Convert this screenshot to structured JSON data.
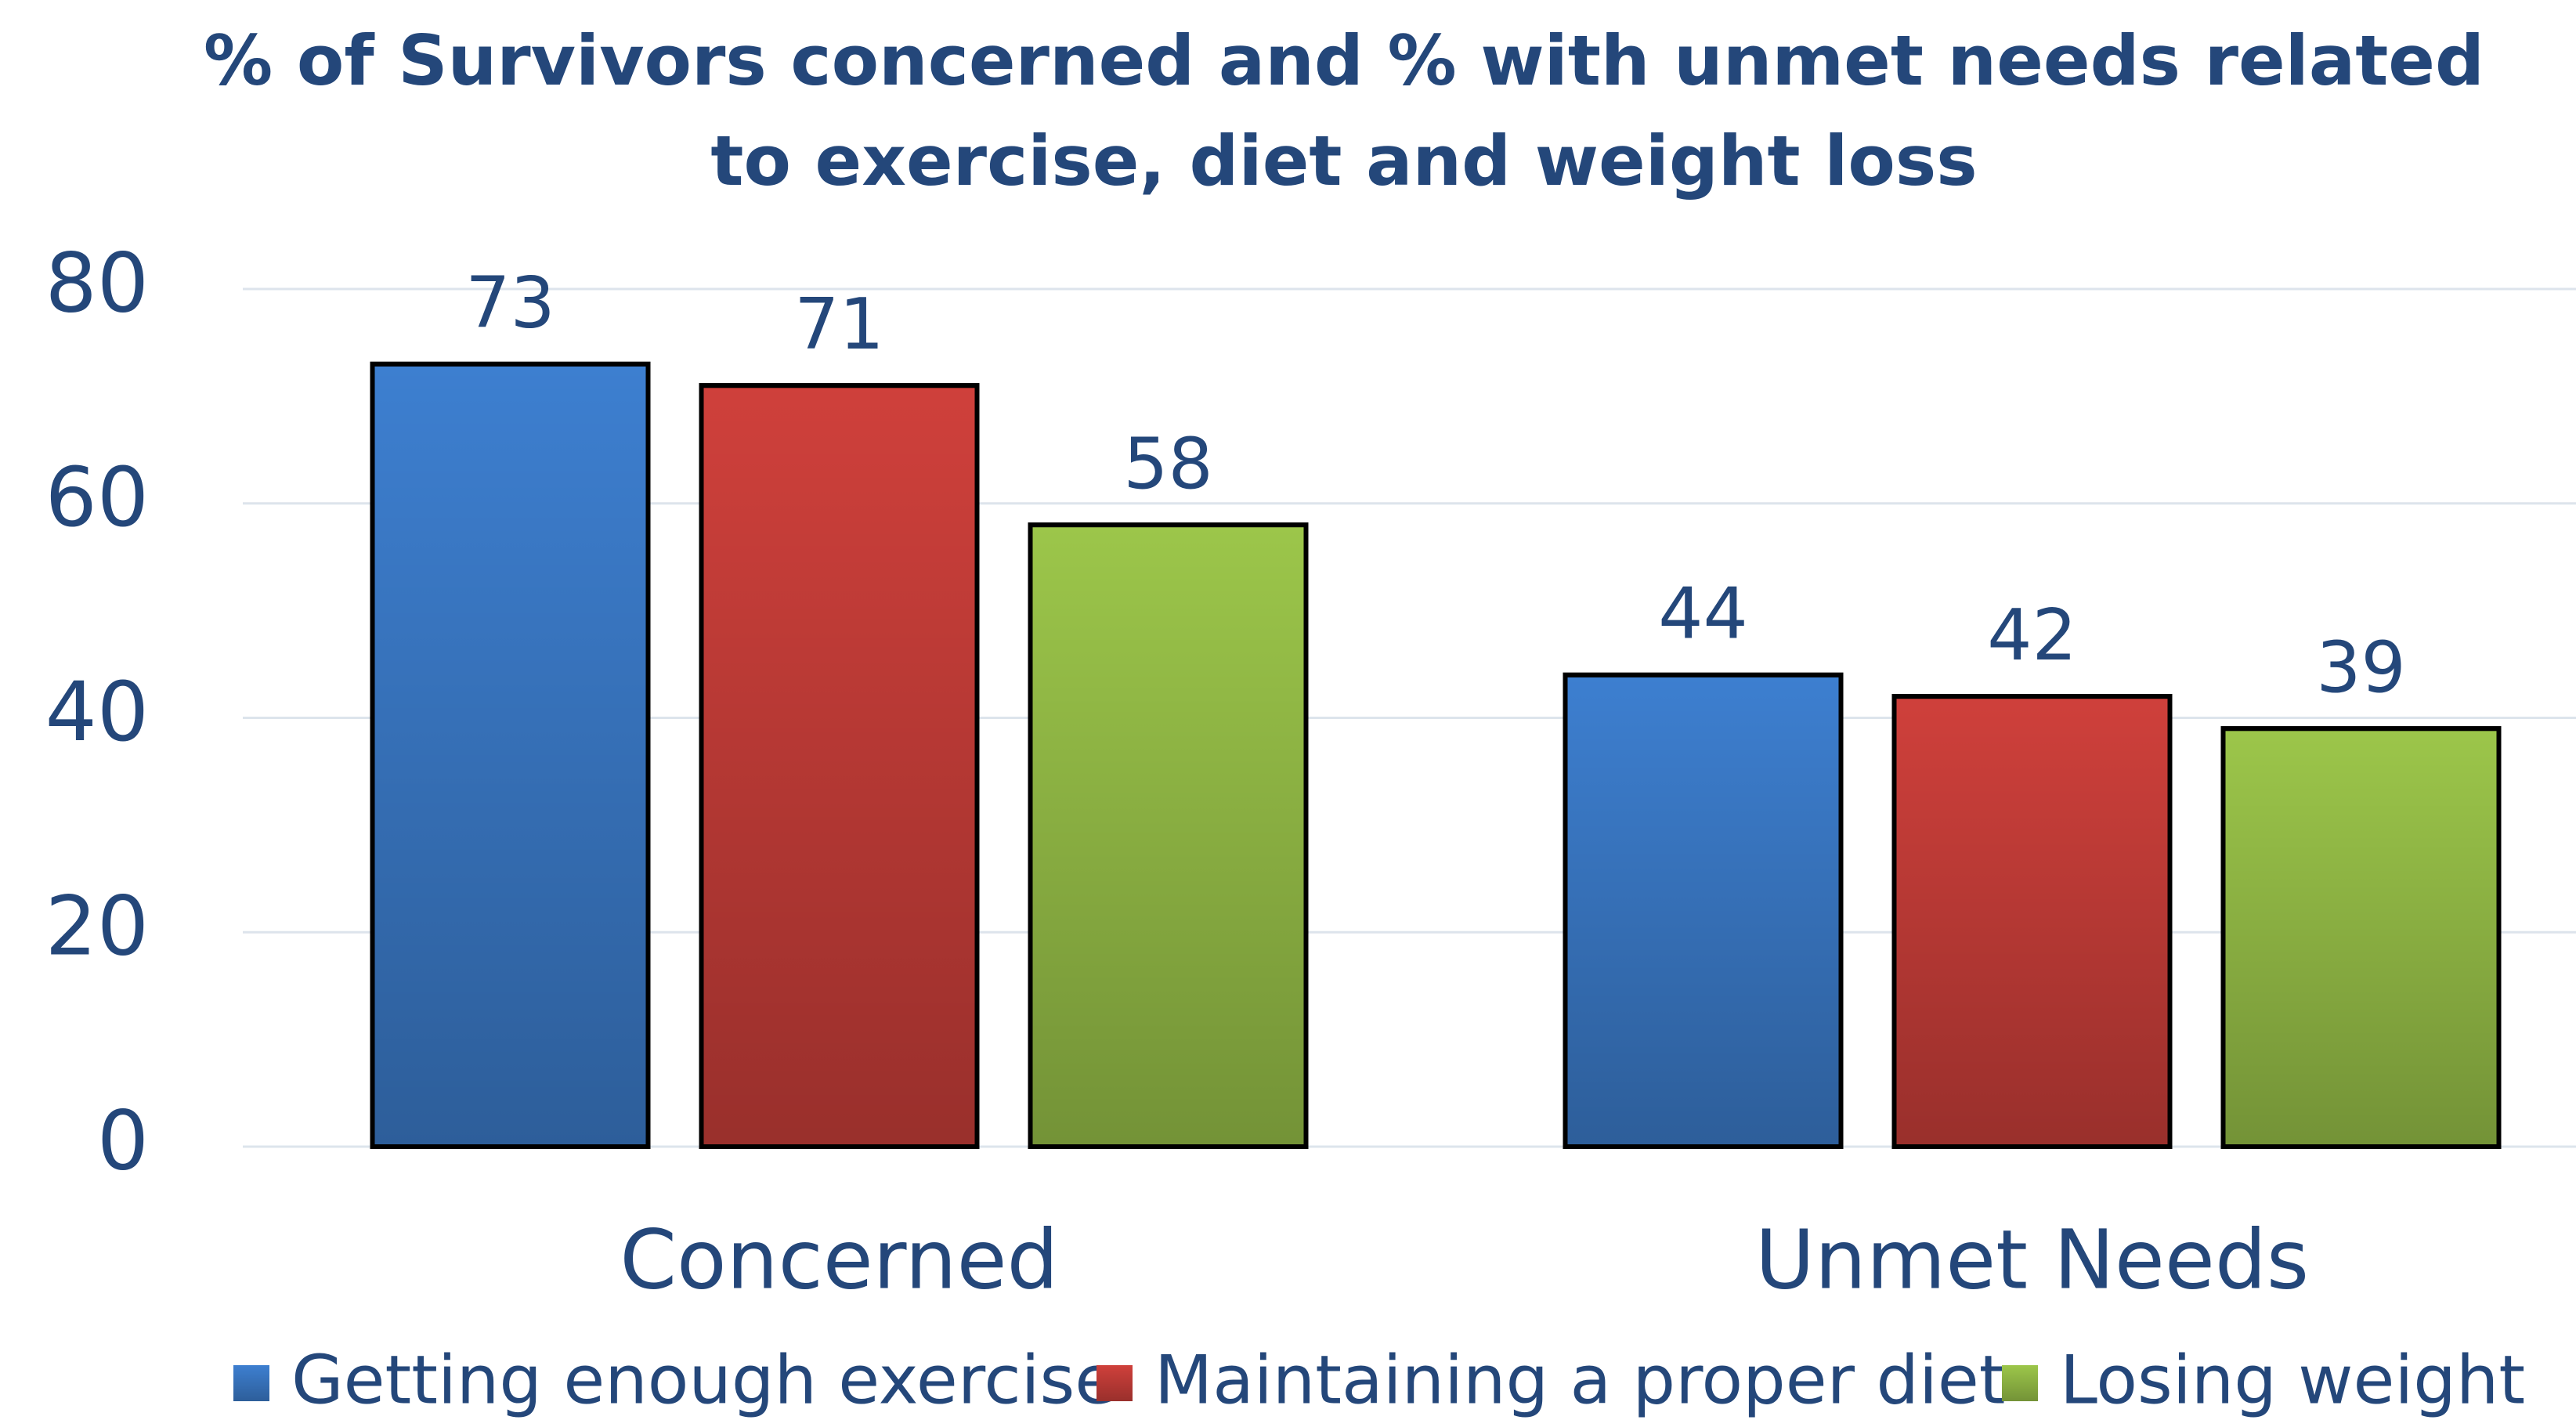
{
  "chart_data": {
    "type": "bar",
    "title": [
      "% of Survivors concerned and  % with unmet needs related",
      "to exercise, diet and weight loss"
    ],
    "categories": [
      "Concerned",
      "Unmet Needs"
    ],
    "series": [
      {
        "name": "Getting enough exercise",
        "color": "#3d7fd0",
        "values": [
          73,
          44
        ]
      },
      {
        "name": "Maintaining a proper diet",
        "color": "#cf403b",
        "values": [
          71,
          42
        ]
      },
      {
        "name": "Losing weight",
        "color": "#9cc64a",
        "values": [
          58,
          39
        ]
      }
    ],
    "ylim": [
      0,
      80
    ],
    "yticks": [
      0,
      20,
      40,
      60,
      80
    ],
    "grid": true,
    "legend": "bottom"
  }
}
